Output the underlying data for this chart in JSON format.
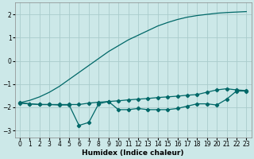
{
  "xlabel": "Humidex (Indice chaleur)",
  "ylabel": "",
  "bg_color": "#cce8e8",
  "grid_color": "#aacccc",
  "line_color": "#006868",
  "xlim": [
    -0.5,
    23.5
  ],
  "ylim": [
    -3.3,
    2.5
  ],
  "x_ticks": [
    0,
    1,
    2,
    3,
    4,
    5,
    6,
    7,
    8,
    9,
    10,
    11,
    12,
    13,
    14,
    15,
    16,
    17,
    18,
    19,
    20,
    21,
    22,
    23
  ],
  "y_ticks": [
    -3,
    -2,
    -1,
    0,
    1,
    2
  ],
  "series": {
    "line1_upper": {
      "x": [
        0,
        1,
        2,
        3,
        4,
        5,
        6,
        7,
        8,
        9,
        10,
        11,
        12,
        13,
        14,
        15,
        16,
        17,
        18,
        19,
        20,
        21,
        22,
        23
      ],
      "y": [
        -1.8,
        -1.7,
        -1.55,
        -1.35,
        -1.1,
        -0.8,
        -0.5,
        -0.2,
        0.1,
        0.4,
        0.65,
        0.9,
        1.1,
        1.3,
        1.5,
        1.65,
        1.78,
        1.88,
        1.95,
        2.0,
        2.05,
        2.08,
        2.1,
        2.12
      ],
      "marker": false
    },
    "line2_jagged": {
      "x": [
        0,
        1,
        2,
        3,
        4,
        5,
        6,
        7,
        8,
        9,
        10,
        11,
        12,
        13,
        14,
        15,
        16,
        17,
        18,
        19,
        20,
        21,
        22,
        23
      ],
      "y": [
        -1.8,
        -1.85,
        -1.88,
        -1.88,
        -1.9,
        -1.9,
        -2.78,
        -2.65,
        -1.85,
        -1.75,
        -2.1,
        -2.1,
        -2.05,
        -2.1,
        -2.1,
        -2.1,
        -2.05,
        -1.95,
        -1.85,
        -1.85,
        -1.9,
        -1.65,
        -1.3,
        -1.3
      ],
      "marker": true
    },
    "line3_flat": {
      "x": [
        0,
        1,
        2,
        3,
        4,
        5,
        6,
        7,
        8,
        9,
        10,
        11,
        12,
        13,
        14,
        15,
        16,
        17,
        18,
        19,
        20,
        21,
        22,
        23
      ],
      "y": [
        -1.82,
        -1.85,
        -1.88,
        -1.88,
        -1.88,
        -1.88,
        -1.88,
        -1.82,
        -1.78,
        -1.75,
        -1.72,
        -1.68,
        -1.65,
        -1.62,
        -1.58,
        -1.55,
        -1.52,
        -1.48,
        -1.45,
        -1.35,
        -1.25,
        -1.2,
        -1.25,
        -1.28
      ],
      "marker": true
    }
  }
}
